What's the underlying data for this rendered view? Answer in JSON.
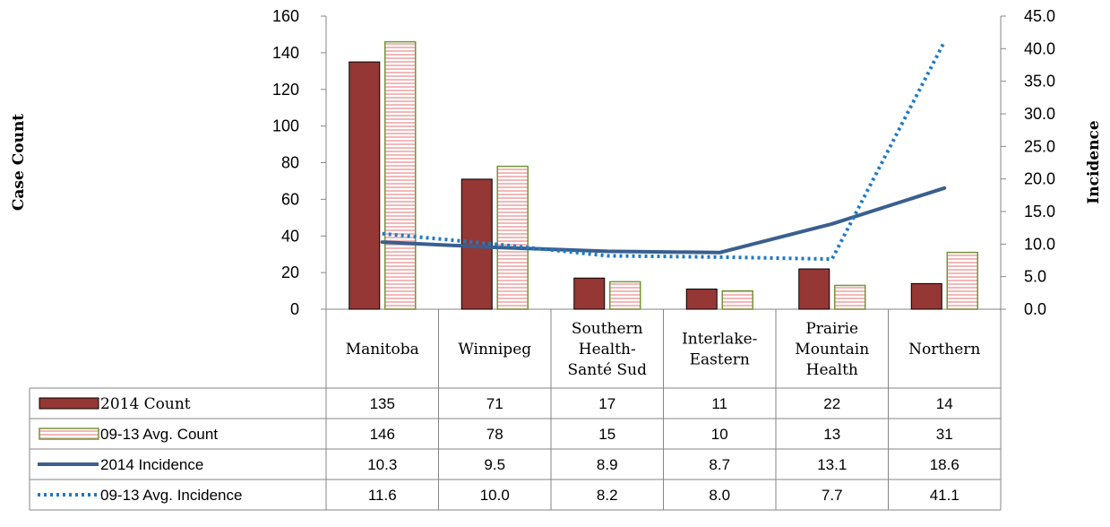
{
  "chart_data": {
    "type": "bar",
    "categories": [
      [
        "Manitoba"
      ],
      [
        "Winnipeg"
      ],
      [
        "Southern",
        "Health-",
        "Santé Sud"
      ],
      [
        "Interlake-",
        "Eastern"
      ],
      [
        "Prairie",
        "Mountain",
        "Health"
      ],
      [
        "Northern"
      ]
    ],
    "y_left_label": "Case Count",
    "y_right_label": "Incidence",
    "y_left_ticks": [
      "0",
      "20",
      "40",
      "60",
      "80",
      "100",
      "120",
      "140",
      "160"
    ],
    "y_right_ticks": [
      "0.0",
      "5.0",
      "10.0",
      "15.0",
      "20.0",
      "25.0",
      "30.0",
      "35.0",
      "40.0",
      "45.0"
    ],
    "ylim_left": [
      0,
      160
    ],
    "ylim_right": [
      0,
      45
    ],
    "grid": false,
    "legend_placement": "data-table",
    "series": [
      {
        "name": "2014 Count",
        "kind": "bar",
        "axis": "left",
        "color": "#953735",
        "values": [
          135,
          71,
          17,
          11,
          22,
          14
        ],
        "labels": [
          "135",
          "71",
          "17",
          "11",
          "22",
          "14"
        ]
      },
      {
        "name": "09-13 Avg. Count",
        "kind": "bar",
        "axis": "left",
        "color": "#f2b8b8",
        "edge": "#77933c",
        "values": [
          146,
          78,
          15,
          10,
          13,
          31
        ],
        "labels": [
          "146",
          "78",
          "15",
          "10",
          "13",
          "31"
        ]
      },
      {
        "name": "2014 Incidence",
        "kind": "line",
        "axis": "right",
        "color": "#3a5f8e",
        "values": [
          10.3,
          9.5,
          8.9,
          8.7,
          13.1,
          18.6
        ],
        "labels": [
          "10.3",
          "9.5",
          "8.9",
          "8.7",
          "13.1",
          "18.6"
        ]
      },
      {
        "name": "09-13 Avg. Incidence",
        "kind": "dotted-line",
        "axis": "right",
        "color": "#1f7ac3",
        "values": [
          11.6,
          10.0,
          8.2,
          8.0,
          7.7,
          41.1
        ],
        "labels": [
          "11.6",
          "10.0",
          "8.2",
          "8.0",
          "7.7",
          "41.1"
        ]
      }
    ]
  }
}
